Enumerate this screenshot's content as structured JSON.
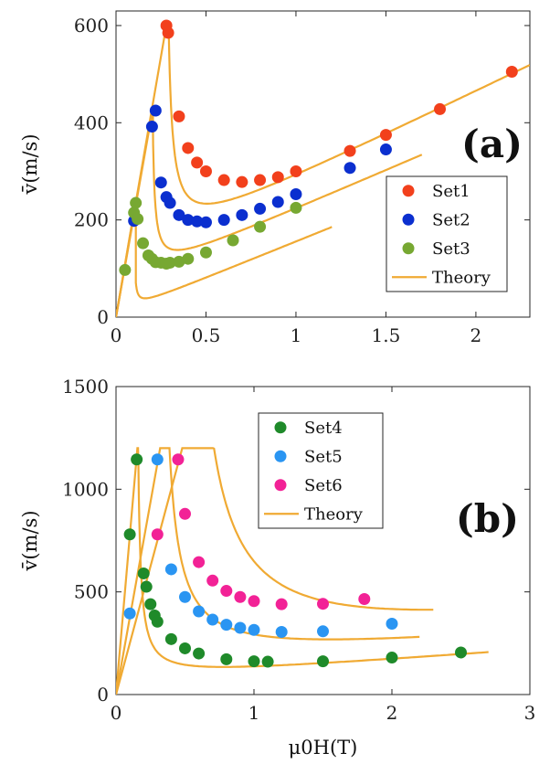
{
  "chart_data": [
    {
      "id": "a",
      "type": "scatter",
      "panel_label": "(a)",
      "xlabel": "",
      "ylabel_text": "v̄(m/s)",
      "xlim": [
        0,
        2.3
      ],
      "ylim": [
        0,
        630
      ],
      "xticks": [
        0,
        0.5,
        1,
        1.5,
        2
      ],
      "xtick_labels": [
        "0",
        "0.5",
        "1",
        "1.5",
        "2"
      ],
      "yticks": [
        0,
        200,
        400,
        600
      ],
      "ytick_labels": [
        "0",
        "200",
        "400",
        "600"
      ],
      "legend_position": "right",
      "series": [
        {
          "name": "Set1",
          "color": "#f2401c",
          "x": [
            0.28,
            0.29,
            0.35,
            0.4,
            0.45,
            0.5,
            0.6,
            0.7,
            0.8,
            0.9,
            1.0,
            1.3,
            1.5,
            1.8,
            2.2
          ],
          "y": [
            600,
            585,
            413,
            348,
            318,
            300,
            282,
            278,
            282,
            288,
            300,
            342,
            375,
            428,
            505
          ]
        },
        {
          "name": "Set2",
          "color": "#0b2fcf",
          "x": [
            0.1,
            0.2,
            0.22,
            0.25,
            0.28,
            0.3,
            0.35,
            0.4,
            0.45,
            0.5,
            0.6,
            0.7,
            0.8,
            0.9,
            1.0,
            1.3,
            1.5
          ],
          "y": [
            198,
            392,
            425,
            277,
            247,
            235,
            210,
            200,
            197,
            195,
            200,
            210,
            223,
            237,
            253,
            307,
            345
          ]
        },
        {
          "name": "Set3",
          "color": "#77a832",
          "x": [
            0.05,
            0.1,
            0.11,
            0.12,
            0.15,
            0.18,
            0.2,
            0.22,
            0.25,
            0.28,
            0.3,
            0.35,
            0.4,
            0.5,
            0.65,
            0.8,
            1.0
          ],
          "y": [
            97,
            215,
            235,
            202,
            152,
            127,
            120,
            113,
            112,
            110,
            112,
            114,
            120,
            133,
            158,
            186,
            225
          ]
        }
      ],
      "theory": {
        "name": "Theory",
        "color": "#f0aa33"
      }
    },
    {
      "id": "b",
      "type": "scatter",
      "panel_label": "(b)",
      "xlabel": "μ0H(T)",
      "ylabel_text": "v̄(m/s)",
      "xlim": [
        0,
        3
      ],
      "ylim": [
        0,
        1500
      ],
      "xticks": [
        0,
        1,
        2,
        3
      ],
      "xtick_labels": [
        "0",
        "1",
        "2",
        "3"
      ],
      "yticks": [
        0,
        500,
        1000,
        1500
      ],
      "ytick_labels": [
        "0",
        "500",
        "1000",
        "1500"
      ],
      "legend_position": "top-center",
      "series": [
        {
          "name": "Set4",
          "color": "#1f8a2a",
          "x": [
            0.1,
            0.15,
            0.2,
            0.22,
            0.25,
            0.28,
            0.3,
            0.4,
            0.5,
            0.6,
            0.8,
            1.0,
            1.1,
            1.5,
            2.0,
            2.5
          ],
          "y": [
            780,
            1145,
            590,
            525,
            440,
            385,
            355,
            270,
            225,
            200,
            172,
            162,
            160,
            162,
            180,
            205
          ]
        },
        {
          "name": "Set5",
          "color": "#2a95f2",
          "x": [
            0.1,
            0.3,
            0.4,
            0.5,
            0.6,
            0.7,
            0.8,
            0.9,
            1.0,
            1.2,
            1.5,
            2.0
          ],
          "y": [
            395,
            1145,
            610,
            475,
            405,
            365,
            340,
            325,
            315,
            305,
            308,
            345
          ]
        },
        {
          "name": "Set6",
          "color": "#f22296",
          "x": [
            0.3,
            0.45,
            0.5,
            0.6,
            0.7,
            0.8,
            0.9,
            1.0,
            1.2,
            1.5,
            1.8
          ],
          "y": [
            780,
            1145,
            880,
            645,
            555,
            505,
            475,
            455,
            440,
            442,
            465
          ]
        }
      ],
      "theory": {
        "name": "Theory",
        "color": "#f0aa33"
      }
    }
  ]
}
